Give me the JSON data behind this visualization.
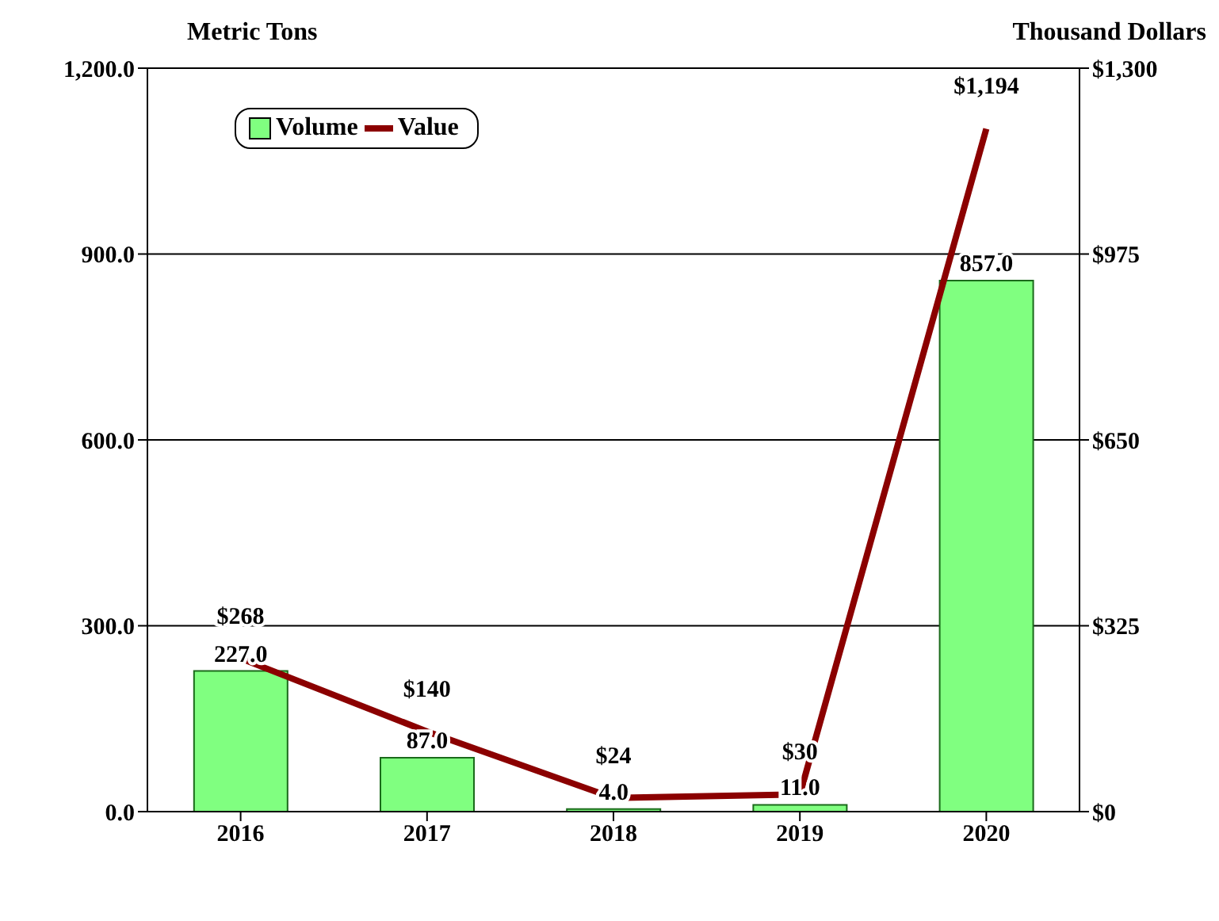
{
  "chart_data": {
    "type": "bar",
    "ylabel": "Metric Tons",
    "y2label": "Thousand Dollars",
    "categories": [
      "2016",
      "2017",
      "2018",
      "2019",
      "2020"
    ],
    "series": [
      {
        "name": "Volume",
        "color": "#80ff80",
        "values": [
          227,
          87,
          4,
          11,
          857
        ],
        "value_labels": [
          "227.0",
          "87.0",
          "4.0",
          "11.0",
          "857.0"
        ]
      },
      {
        "name": "Value",
        "type": "line",
        "axis": "y2",
        "color": "#8b0000",
        "values": [
          268,
          140,
          24,
          30,
          1194
        ],
        "value_labels": [
          "$268",
          "$140",
          "$24",
          "$30",
          "$1,194"
        ]
      }
    ],
    "ylim": [
      0,
      1200
    ],
    "yticks": [
      {
        "value": 0,
        "label": "0.0"
      },
      {
        "value": 300,
        "label": "300.0"
      },
      {
        "value": 600,
        "label": "600.0"
      },
      {
        "value": 900,
        "label": "900.0"
      },
      {
        "value": 1200,
        "label": "1,200.0"
      }
    ],
    "y2lim": [
      0,
      1300
    ],
    "y2ticks": [
      {
        "value": 0,
        "label": "$0"
      },
      {
        "value": 325,
        "label": "$325"
      },
      {
        "value": 650,
        "label": "$650"
      },
      {
        "value": 975,
        "label": "$975"
      },
      {
        "value": 1300,
        "label": "$1,300"
      }
    ],
    "grid": "y2",
    "legend": "top left",
    "marker": "none",
    "line_style": "solid"
  }
}
